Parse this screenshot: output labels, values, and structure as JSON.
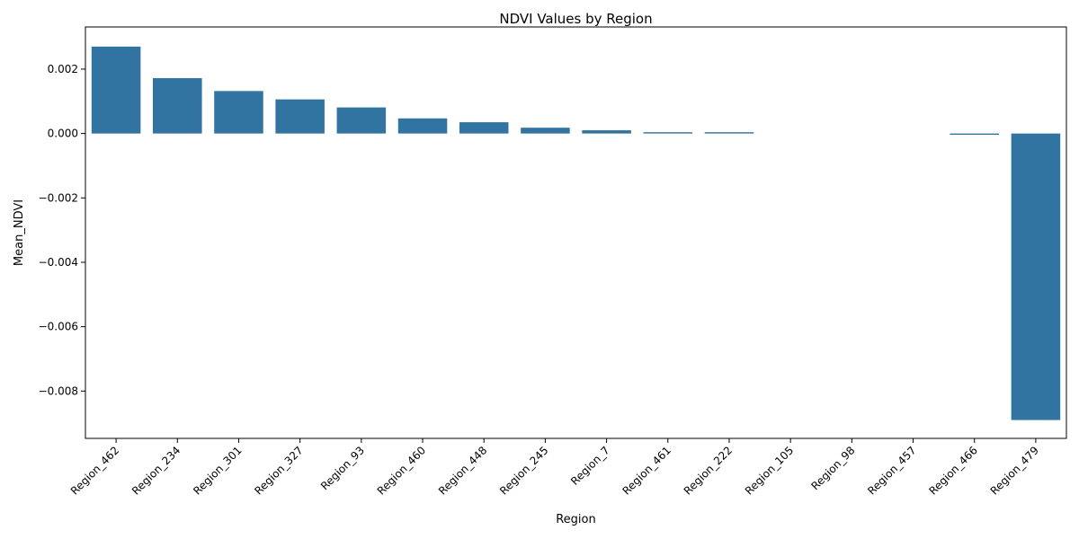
{
  "chart_data": {
    "type": "bar",
    "title": "NDVI Values by Region",
    "xlabel": "Region",
    "ylabel": "Mean_NDVI",
    "categories": [
      "Region_462",
      "Region_234",
      "Region_301",
      "Region_327",
      "Region_93",
      "Region_460",
      "Region_448",
      "Region_245",
      "Region_7",
      "Region_461",
      "Region_222",
      "Region_105",
      "Region_98",
      "Region_457",
      "Region_466",
      "Region_479"
    ],
    "values": [
      0.0027,
      0.00172,
      0.00132,
      0.00106,
      0.00081,
      0.00047,
      0.00035,
      0.00018,
      0.0001,
      4e-05,
      4e-05,
      0.0,
      0.0,
      0.0,
      -4e-05,
      -0.0089
    ],
    "ylim": [
      -0.00947,
      0.00331
    ],
    "yticks": [
      0.002,
      0.0,
      -0.002,
      -0.004,
      -0.006,
      -0.008
    ],
    "ytick_labels": [
      "0.002",
      "0.000",
      "−0.002",
      "−0.004",
      "−0.006",
      "−0.008"
    ],
    "grid": false,
    "legend": "none",
    "bar_color": "#3274a1"
  }
}
